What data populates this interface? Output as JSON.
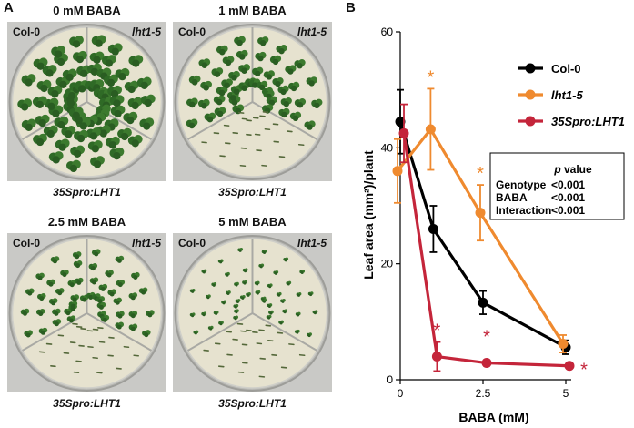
{
  "panel_a": {
    "letter": "A",
    "plates": [
      {
        "title": "0 mM BABA",
        "genotype_left": "Col-0",
        "genotype_right": "lht1-5",
        "genotype_bottom": "35Spro:LHT1"
      },
      {
        "title": "1 mM BABA",
        "genotype_left": "Col-0",
        "genotype_right": "lht1-5",
        "genotype_bottom": "35Spro:LHT1"
      },
      {
        "title": "2.5 mM BABA",
        "genotype_left": "Col-0",
        "genotype_right": "lht1-5",
        "genotype_bottom": "35Spro:LHT1"
      },
      {
        "title": "5 mM BABA",
        "genotype_left": "Col-0",
        "genotype_right": "lht1-5",
        "genotype_bottom": "35Spro:LHT1"
      }
    ]
  },
  "panel_b": {
    "letter": "B",
    "stats_table": {
      "header": "p value",
      "rows": [
        {
          "term": "Genotype",
          "value": "<0.001"
        },
        {
          "term": "BABA",
          "value": "<0.001"
        },
        {
          "term": "Interaction",
          "value": "<0.001"
        }
      ]
    }
  },
  "colors": {
    "col0": "#000000",
    "lht1_5": "#ef8a2f",
    "lht1_oe": "#c4253a"
  },
  "chart_data": {
    "type": "line",
    "xlabel": "BABA (mM)",
    "ylabel": "Leaf area (mm²)/plant",
    "xlim": [
      0,
      5
    ],
    "ylim": [
      0,
      60
    ],
    "x_ticks": [
      0,
      2.5,
      5
    ],
    "y_ticks": [
      0,
      20,
      40,
      60
    ],
    "x_tick_labels": [
      "0",
      "2.5",
      "5"
    ],
    "y_tick_labels": [
      "0",
      "20",
      "40",
      "60"
    ],
    "x": [
      0,
      1,
      2.5,
      5
    ],
    "legend_position": "top-right",
    "series": [
      {
        "name": "Col-0",
        "color": "#000000",
        "italic": false,
        "values": [
          44.5,
          26,
          13.3,
          5.6
        ],
        "err": [
          5.5,
          4,
          2,
          1.2
        ],
        "asterisks": [
          false,
          false,
          false,
          false
        ]
      },
      {
        "name": "lht1-5",
        "color": "#ef8a2f",
        "italic": true,
        "values": [
          36,
          43.2,
          28.8,
          6.2
        ],
        "err": [
          5.5,
          7,
          4.8,
          1.5
        ],
        "asterisks": [
          false,
          true,
          true,
          false
        ]
      },
      {
        "name": "35Spro:LHT1",
        "color": "#c4253a",
        "italic": true,
        "values": [
          42.5,
          4,
          2.9,
          2.4
        ],
        "err": [
          5,
          2.5,
          0.5,
          0.4
        ],
        "asterisks": [
          false,
          true,
          true,
          true
        ]
      }
    ],
    "asterisk_symbol": "*"
  }
}
